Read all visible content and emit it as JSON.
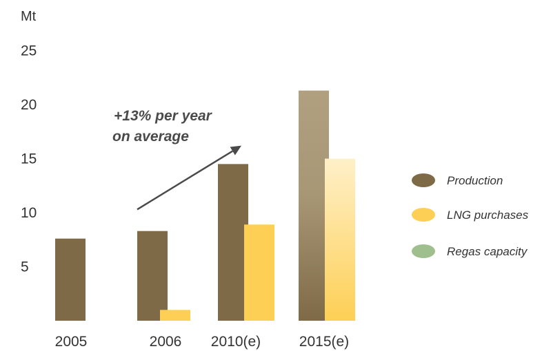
{
  "chart_data": {
    "type": "bar",
    "unit_label": "Mt",
    "categories": [
      "2005",
      "2006",
      "2010(e)",
      "2015(e)"
    ],
    "yticks": [
      5,
      10,
      15,
      20,
      25
    ],
    "ylim": [
      0,
      25
    ],
    "grid": false,
    "legend_position": "right",
    "series": [
      {
        "name": "Production",
        "color": "#7f6a47",
        "values": [
          7.6,
          8.3,
          14.5,
          21.3
        ]
      },
      {
        "name": "LNG purchases",
        "color": "#fdcf55",
        "values": [
          null,
          1.0,
          8.9,
          15.0
        ]
      }
    ],
    "legend": [
      {
        "name": "Production",
        "color": "#7f6a47"
      },
      {
        "name": "LNG purchases",
        "color": "#fdcf55"
      },
      {
        "name": "Regas capacity",
        "color": "#9fc08e"
      }
    ],
    "annotation": {
      "line1": "+13% per year",
      "line2": "on average",
      "arrow_from_value": 10.3,
      "arrow_to_value": 16.2
    }
  }
}
